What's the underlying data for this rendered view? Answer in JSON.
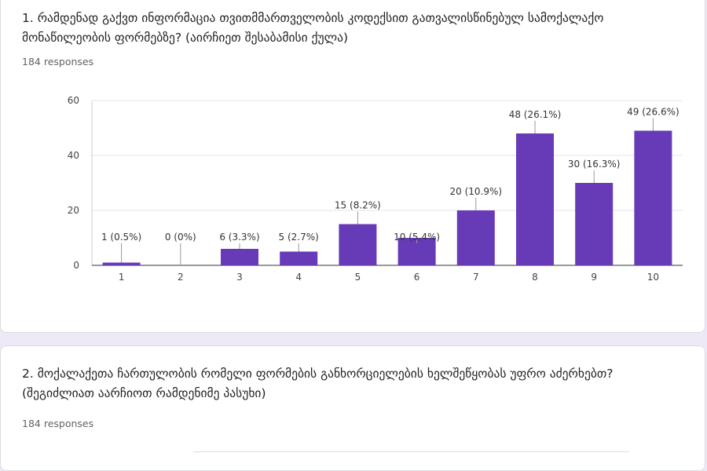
{
  "questions": [
    {
      "title": "1. რამდენად გაქვთ ინფორმაცია თვითმმართველობის კოდექსით გათვალისწინებულ სამოქალაქო მონაწილეობის ფორმებზე? (აირჩიეთ შესაბამისი ქულა)",
      "responses": "184 responses"
    },
    {
      "title": "2. მოქალაქეთა ჩართულობის რომელი ფორმების განხორციელების ხელშეწყობას უფრო აძერხებთ? (შეგიძლიათ აარჩიოთ რამდენიმე პასუხი)",
      "responses": "184 responses"
    }
  ],
  "chart_data": {
    "type": "bar",
    "categories": [
      "1",
      "2",
      "3",
      "4",
      "5",
      "6",
      "7",
      "8",
      "9",
      "10"
    ],
    "values": [
      1,
      0,
      6,
      5,
      15,
      10,
      20,
      48,
      30,
      49
    ],
    "data_labels": [
      "1 (0.5%)",
      "0 (0%)",
      "6 (3.3%)",
      "5 (2.7%)",
      "15 (8.2%)",
      "10 (5.4%)",
      "20 (10.9%)",
      "48 (26.1%)",
      "30 (16.3%)",
      "49 (26.6%)"
    ],
    "ylim": [
      0,
      60
    ],
    "yticks": [
      0,
      20,
      40,
      60
    ],
    "bar_color": "#673ab7",
    "label_inside_bar_color": "#ffffff",
    "grid": true
  }
}
